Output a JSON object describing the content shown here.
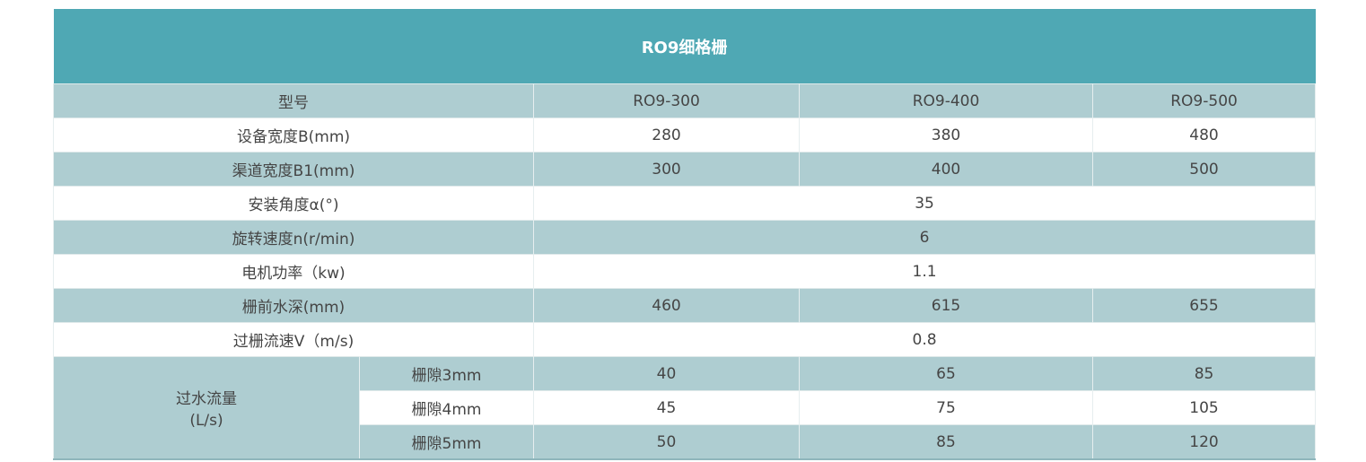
{
  "title": "RO9细格栅",
  "header": {
    "label": "型号",
    "models": [
      "RO9-300",
      "RO9-400",
      "RO9-500"
    ]
  },
  "rows": [
    {
      "label": "设备宽度B(mm)",
      "values": [
        "280",
        "380",
        "480"
      ]
    },
    {
      "label": "渠道宽度B1(mm)",
      "values": [
        "300",
        "400",
        "500"
      ]
    },
    {
      "label": "安装角度α(°)",
      "value": "35"
    },
    {
      "label": "旋转速度n(r/min)",
      "value": "6"
    },
    {
      "label": "电机功率（kw)",
      "value": "1.1"
    },
    {
      "label": "栅前水深(mm)",
      "values": [
        "460",
        "615",
        "655"
      ]
    },
    {
      "label": "过栅流速V（m/s)",
      "value": "0.8"
    }
  ],
  "flow": {
    "label_line1": "过水流量",
    "label_line2": "(L/s)",
    "rows": [
      {
        "label": "栅隙3mm",
        "values": [
          "40",
          "65",
          "85"
        ]
      },
      {
        "label": "栅隙4mm",
        "values": [
          "45",
          "75",
          "105"
        ]
      },
      {
        "label": "栅隙5mm",
        "values": [
          "50",
          "85",
          "120"
        ]
      }
    ]
  },
  "colors": {
    "header": "#4fa8b4",
    "shade": "#aecdd1"
  }
}
